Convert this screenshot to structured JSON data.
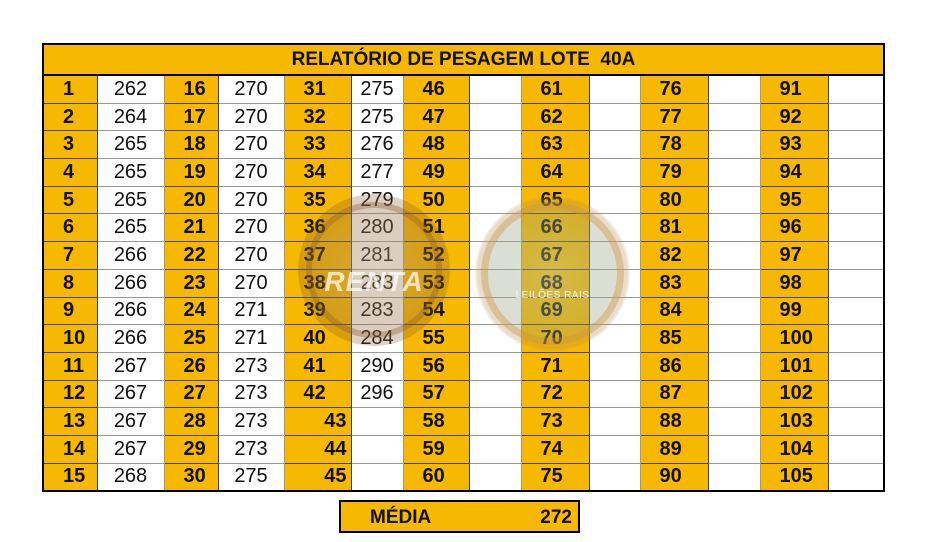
{
  "report": {
    "title": "RELATÓRIO DE PESAGEM LOTE  40A",
    "rows": [
      [
        {
          "n": "1",
          "v": "262"
        },
        {
          "n": "16",
          "v": "270"
        },
        {
          "n": "31",
          "v": "275"
        },
        {
          "n": "46",
          "v": ""
        },
        {
          "n": "61",
          "v": ""
        },
        {
          "n": "76",
          "v": ""
        },
        {
          "n": "91",
          "v": ""
        }
      ],
      [
        {
          "n": "2",
          "v": "264"
        },
        {
          "n": "17",
          "v": "270"
        },
        {
          "n": "32",
          "v": "275"
        },
        {
          "n": "47",
          "v": ""
        },
        {
          "n": "62",
          "v": ""
        },
        {
          "n": "77",
          "v": ""
        },
        {
          "n": "92",
          "v": ""
        }
      ],
      [
        {
          "n": "3",
          "v": "265"
        },
        {
          "n": "18",
          "v": "270"
        },
        {
          "n": "33",
          "v": "276"
        },
        {
          "n": "48",
          "v": ""
        },
        {
          "n": "63",
          "v": ""
        },
        {
          "n": "78",
          "v": ""
        },
        {
          "n": "93",
          "v": ""
        }
      ],
      [
        {
          "n": "4",
          "v": "265"
        },
        {
          "n": "19",
          "v": "270"
        },
        {
          "n": "34",
          "v": "277"
        },
        {
          "n": "49",
          "v": ""
        },
        {
          "n": "64",
          "v": ""
        },
        {
          "n": "79",
          "v": ""
        },
        {
          "n": "94",
          "v": ""
        }
      ],
      [
        {
          "n": "5",
          "v": "265"
        },
        {
          "n": "20",
          "v": "270"
        },
        {
          "n": "35",
          "v": "279"
        },
        {
          "n": "50",
          "v": ""
        },
        {
          "n": "65",
          "v": ""
        },
        {
          "n": "80",
          "v": ""
        },
        {
          "n": "95",
          "v": ""
        }
      ],
      [
        {
          "n": "6",
          "v": "265"
        },
        {
          "n": "21",
          "v": "270"
        },
        {
          "n": "36",
          "v": "280"
        },
        {
          "n": "51",
          "v": ""
        },
        {
          "n": "66",
          "v": ""
        },
        {
          "n": "81",
          "v": ""
        },
        {
          "n": "96",
          "v": ""
        }
      ],
      [
        {
          "n": "7",
          "v": "266"
        },
        {
          "n": "22",
          "v": "270"
        },
        {
          "n": "37",
          "v": "281"
        },
        {
          "n": "52",
          "v": ""
        },
        {
          "n": "67",
          "v": ""
        },
        {
          "n": "82",
          "v": ""
        },
        {
          "n": "97",
          "v": ""
        }
      ],
      [
        {
          "n": "8",
          "v": "266"
        },
        {
          "n": "23",
          "v": "270"
        },
        {
          "n": "38",
          "v": "283"
        },
        {
          "n": "53",
          "v": ""
        },
        {
          "n": "68",
          "v": ""
        },
        {
          "n": "83",
          "v": ""
        },
        {
          "n": "98",
          "v": ""
        }
      ],
      [
        {
          "n": "9",
          "v": "266"
        },
        {
          "n": "24",
          "v": "271"
        },
        {
          "n": "39",
          "v": "283"
        },
        {
          "n": "54",
          "v": ""
        },
        {
          "n": "69",
          "v": ""
        },
        {
          "n": "84",
          "v": ""
        },
        {
          "n": "99",
          "v": ""
        }
      ],
      [
        {
          "n": "10",
          "v": "266"
        },
        {
          "n": "25",
          "v": "271"
        },
        {
          "n": "40",
          "v": "284"
        },
        {
          "n": "55",
          "v": ""
        },
        {
          "n": "70",
          "v": ""
        },
        {
          "n": "85",
          "v": ""
        },
        {
          "n": "100",
          "v": ""
        }
      ],
      [
        {
          "n": "11",
          "v": "267"
        },
        {
          "n": "26",
          "v": "273"
        },
        {
          "n": "41",
          "v": "290"
        },
        {
          "n": "56",
          "v": ""
        },
        {
          "n": "71",
          "v": ""
        },
        {
          "n": "86",
          "v": ""
        },
        {
          "n": "101",
          "v": ""
        }
      ],
      [
        {
          "n": "12",
          "v": "267"
        },
        {
          "n": "27",
          "v": "273"
        },
        {
          "n": "42",
          "v": "296"
        },
        {
          "n": "57",
          "v": ""
        },
        {
          "n": "72",
          "v": ""
        },
        {
          "n": "87",
          "v": ""
        },
        {
          "n": "102",
          "v": ""
        }
      ],
      [
        {
          "n": "13",
          "v": "267"
        },
        {
          "n": "28",
          "v": "273"
        },
        {
          "n": "43",
          "v": ""
        },
        {
          "n": "58",
          "v": ""
        },
        {
          "n": "73",
          "v": ""
        },
        {
          "n": "88",
          "v": ""
        },
        {
          "n": "103",
          "v": ""
        }
      ],
      [
        {
          "n": "14",
          "v": "267"
        },
        {
          "n": "29",
          "v": "273"
        },
        {
          "n": "44",
          "v": ""
        },
        {
          "n": "59",
          "v": ""
        },
        {
          "n": "74",
          "v": ""
        },
        {
          "n": "89",
          "v": ""
        },
        {
          "n": "104",
          "v": ""
        }
      ],
      [
        {
          "n": "15",
          "v": "268"
        },
        {
          "n": "30",
          "v": "275"
        },
        {
          "n": "45",
          "v": ""
        },
        {
          "n": "60",
          "v": ""
        },
        {
          "n": "75",
          "v": ""
        },
        {
          "n": "90",
          "v": ""
        },
        {
          "n": "105",
          "v": ""
        }
      ]
    ]
  },
  "media": {
    "label": "MÉDIA",
    "value": "272"
  },
  "watermarks": [
    {
      "icon": "renta-logo-watermark",
      "text": "RENTA"
    },
    {
      "icon": "leiloes-logo-watermark",
      "text": "LEILÕES RAIS"
    }
  ],
  "colors": {
    "header_fill": "#f6b800",
    "border": "#000000",
    "text": "#111111"
  }
}
